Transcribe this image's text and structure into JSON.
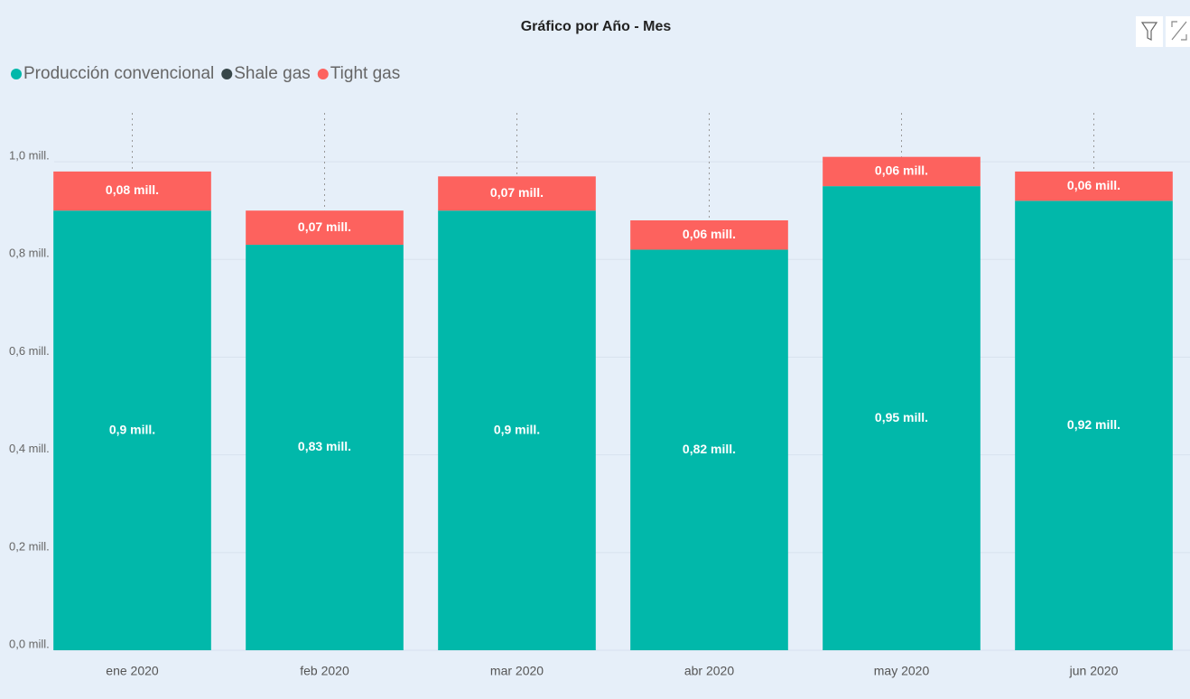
{
  "chart_data": {
    "type": "stacked_bar",
    "title": "Gráfico por Año - Mes",
    "categories": [
      "ene 2020",
      "feb 2020",
      "mar 2020",
      "abr 2020",
      "may 2020",
      "jun 2020"
    ],
    "series": [
      {
        "name": "Producción convencional",
        "color": "#01b8aa",
        "values": [
          0.9,
          0.83,
          0.9,
          0.82,
          0.95,
          0.92
        ],
        "value_labels": [
          "0,9 mill.",
          "0,83 mill.",
          "0,9 mill.",
          "0,82 mill.",
          "0,95 mill.",
          "0,92 mill."
        ]
      },
      {
        "name": "Shale gas",
        "color": "#374649",
        "values": [
          0,
          0,
          0,
          0,
          0,
          0
        ]
      },
      {
        "name": "Tight gas",
        "color": "#fd625e",
        "values": [
          0.08,
          0.07,
          0.07,
          0.06,
          0.06,
          0.06
        ],
        "value_labels": [
          "0,08 mill.",
          "0,07 mill.",
          "0,07 mill.",
          "0,06 mill.",
          "0,06 mill.",
          "0,06 mill."
        ]
      }
    ],
    "ylim": [
      0,
      1.1
    ],
    "yticks": [
      {
        "value": 0,
        "label": "0,0 mill."
      },
      {
        "value": 0.2,
        "label": "0,2 mill."
      },
      {
        "value": 0.4,
        "label": "0,4 mill."
      },
      {
        "value": 0.6,
        "label": "0,6 mill."
      },
      {
        "value": 0.8,
        "label": "0,8 mill."
      },
      {
        "value": 1.0,
        "label": "1,0 mill."
      }
    ],
    "grid": true,
    "legend": "top-left"
  }
}
